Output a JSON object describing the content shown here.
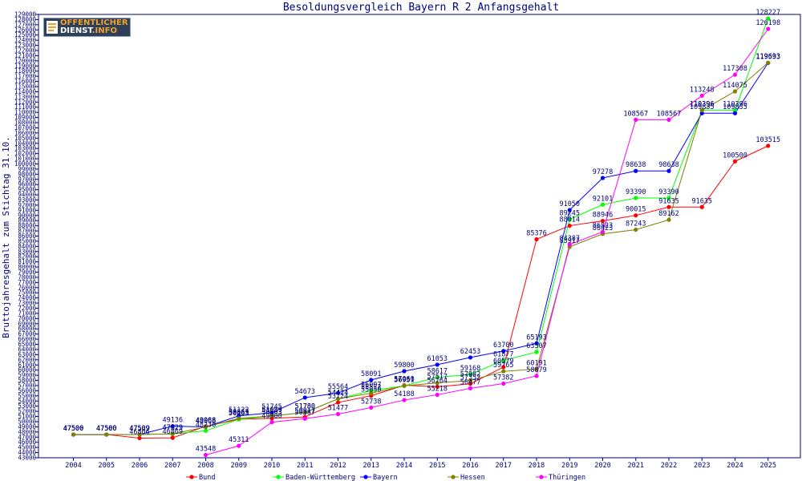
{
  "chart_data": {
    "type": "line",
    "title": "Besoldungsvergleich Bayern R 2 Anfangsgehalt",
    "xlabel": "",
    "ylabel": "Bruttojahresgehalt zum Stichtag 31.10.",
    "ylim": [
      43000,
      129000
    ],
    "ytick_step": 1000,
    "categories": [
      "2004",
      "2005",
      "2006",
      "2007",
      "2008",
      "2009",
      "2010",
      "2011",
      "2012",
      "2013",
      "2014",
      "2015",
      "2016",
      "2017",
      "2018",
      "2019",
      "2020",
      "2021",
      "2022",
      "2023",
      "2024",
      "2025"
    ],
    "grid": false,
    "legend_position": "bottom",
    "series": [
      {
        "name": "Bund",
        "color": "#ff0000",
        "values": [
          47500,
          47500,
          46806,
          46869,
          49088,
          50463,
          50663,
          50917,
          53724,
          55030,
          57060,
          56764,
          57352,
          60579,
          85376,
          88014,
          88946,
          90015,
          91635,
          91635,
          100500,
          103515
        ]
      },
      {
        "name": "Baden-Württemberg",
        "color": "#00ff00",
        "values": [
          47500,
          47500,
          47509,
          47629,
          48238,
          50463,
          51089,
          51780,
          54424,
          56007,
          56951,
          58617,
          59168,
          61877,
          63507,
          89245,
          92101,
          93390,
          93390,
          110396,
          110396,
          128227
        ]
      },
      {
        "name": "Bayern",
        "color": "#0000ff",
        "values": [
          47500,
          47500,
          47509,
          49136,
          48968,
          51122,
          51745,
          54673,
          55564,
          58091,
          59800,
          61053,
          62453,
          63700,
          65193,
          91050,
          97278,
          98638,
          98638,
          109835,
          109835,
          119593
        ]
      },
      {
        "name": "Hessen",
        "color": "#808000",
        "values": [
          47500,
          47500,
          47509,
          47629,
          48968,
          50663,
          51089,
          51780,
          54424,
          55522,
          56951,
          57517,
          57982,
          59765,
          60191,
          83917,
          86423,
          87243,
          89162,
          110396,
          114075,
          119633
        ]
      },
      {
        "name": "Thüringen",
        "color": "#ff00ff",
        "values": [
          null,
          null,
          null,
          null,
          43548,
          45311,
          49900,
          50587,
          51477,
          52738,
          54188,
          55218,
          56477,
          57382,
          58879,
          84387,
          86823,
          108567,
          108567,
          113248,
          117308,
          126198
        ]
      }
    ]
  },
  "logo": {
    "line1": "ÖFFENTLICHER",
    "line2a": "DIENST",
    "line2b": ".INFO"
  },
  "colors": {
    "axis": "#000080",
    "title": "#000080",
    "background": "#ffffff"
  }
}
